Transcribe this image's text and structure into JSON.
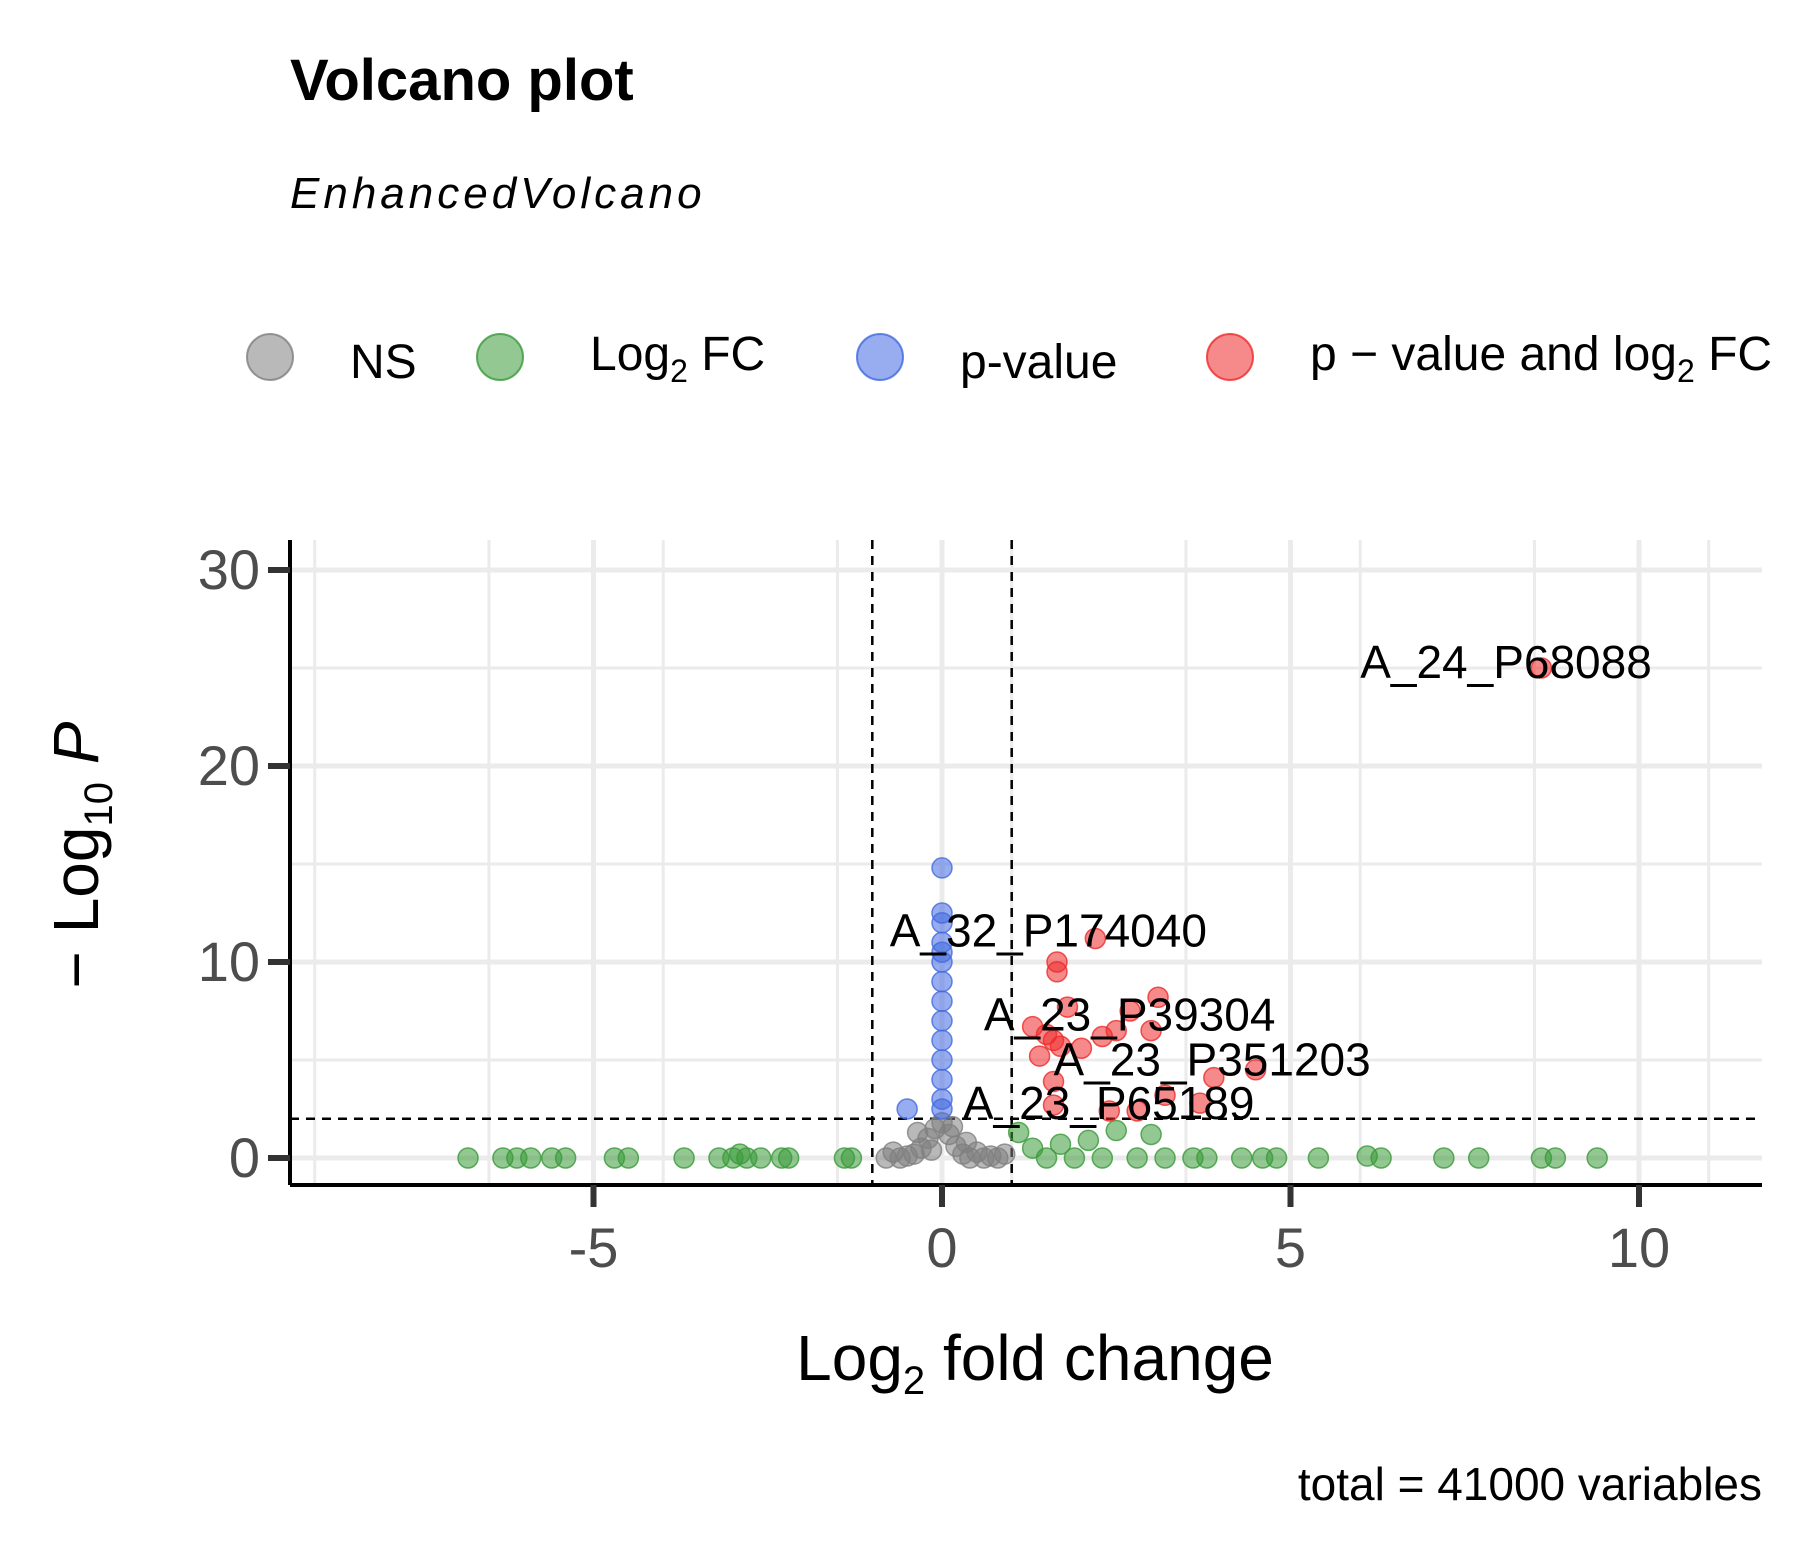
{
  "chart_data": {
    "type": "scatter",
    "title": "Volcano plot",
    "subtitle": "EnhancedVolcano",
    "xlabel": "Log2 fold change",
    "ylabel": "-Log10 P",
    "caption": "total = 41000 variables",
    "xlim": [
      -9,
      12
    ],
    "ylim": [
      -1.5,
      31.5
    ],
    "x_ticks": [
      -5,
      0,
      5,
      10
    ],
    "y_ticks": [
      0,
      10,
      20,
      30
    ],
    "grid": true,
    "legend_position": "top",
    "thresholds": {
      "fc_cutoff": 1,
      "p_cutoff_neglog10": 2
    },
    "colors": {
      "NS": "#808080",
      "FC": "#3a9a3a",
      "P": "#4169e1",
      "FC_P": "#ee2a2a"
    },
    "series": [
      {
        "name": "NS",
        "color": "#808080",
        "label_prefix": "",
        "label_main": "NS",
        "label_sub": "",
        "label_suffix": "",
        "points": [
          [
            -0.8,
            0
          ],
          [
            -0.6,
            0
          ],
          [
            -0.5,
            0.1
          ],
          [
            -0.4,
            0.2
          ],
          [
            -0.3,
            0.5
          ],
          [
            -0.2,
            1.0
          ],
          [
            -0.1,
            1.5
          ],
          [
            0,
            1.8
          ],
          [
            0.1,
            1.2
          ],
          [
            0.2,
            0.6
          ],
          [
            0.3,
            0.2
          ],
          [
            0.4,
            0
          ],
          [
            0.5,
            0.3
          ],
          [
            0.6,
            0
          ],
          [
            0.7,
            0.1
          ],
          [
            0.8,
            0
          ],
          [
            0.9,
            0.2
          ],
          [
            -0.7,
            0.3
          ],
          [
            -0.35,
            1.3
          ],
          [
            0.15,
            1.6
          ],
          [
            0.35,
            0.8
          ],
          [
            -0.15,
            0.4
          ]
        ]
      },
      {
        "name": "Log2 FC",
        "color": "#3a9a3a",
        "label_prefix": "",
        "label_main": "Log",
        "label_sub": "2",
        "label_suffix": " FC",
        "points": [
          [
            -6.8,
            0
          ],
          [
            -6.3,
            0
          ],
          [
            -6.1,
            0
          ],
          [
            -5.9,
            0
          ],
          [
            -5.6,
            0
          ],
          [
            -5.4,
            0
          ],
          [
            -4.7,
            0
          ],
          [
            -4.5,
            0
          ],
          [
            -3.7,
            0
          ],
          [
            -3.2,
            0
          ],
          [
            -3.0,
            0
          ],
          [
            -2.9,
            0.2
          ],
          [
            -2.8,
            0
          ],
          [
            -2.6,
            0
          ],
          [
            -2.3,
            0
          ],
          [
            -2.2,
            0
          ],
          [
            -1.4,
            0
          ],
          [
            -1.3,
            0
          ],
          [
            1.1,
            1.3
          ],
          [
            1.3,
            0.5
          ],
          [
            1.5,
            0
          ],
          [
            1.7,
            0.7
          ],
          [
            1.9,
            0
          ],
          [
            2.1,
            0.9
          ],
          [
            2.3,
            0
          ],
          [
            2.5,
            1.4
          ],
          [
            2.8,
            0
          ],
          [
            3.0,
            1.2
          ],
          [
            3.2,
            0
          ],
          [
            3.6,
            0
          ],
          [
            3.8,
            0
          ],
          [
            4.3,
            0
          ],
          [
            4.6,
            0
          ],
          [
            4.8,
            0
          ],
          [
            5.4,
            0
          ],
          [
            6.1,
            0.1
          ],
          [
            6.3,
            0
          ],
          [
            7.2,
            0
          ],
          [
            7.7,
            0
          ],
          [
            8.6,
            0
          ],
          [
            8.8,
            0
          ],
          [
            9.4,
            0
          ]
        ]
      },
      {
        "name": "p-value",
        "color": "#4169e1",
        "label_prefix": "",
        "label_main": "p-value",
        "label_sub": "",
        "label_suffix": "",
        "points": [
          [
            -0.5,
            2.5
          ],
          [
            0,
            2.5
          ],
          [
            0,
            3
          ],
          [
            0,
            4
          ],
          [
            0,
            5
          ],
          [
            0,
            6
          ],
          [
            0,
            7
          ],
          [
            0,
            8
          ],
          [
            0,
            9
          ],
          [
            0,
            10
          ],
          [
            0,
            10.5
          ],
          [
            0,
            11
          ],
          [
            0,
            12
          ],
          [
            0,
            12.5
          ],
          [
            0,
            14.8
          ]
        ]
      },
      {
        "name": "p - value and log2 FC",
        "color": "#ee2a2a",
        "label_prefix": "p − value and ",
        "label_main": "log",
        "label_sub": "2",
        "label_suffix": " FC",
        "points": [
          [
            8.6,
            25
          ],
          [
            2.2,
            11.2
          ],
          [
            1.65,
            10
          ],
          [
            1.65,
            9.5
          ],
          [
            3.1,
            8.2
          ],
          [
            1.8,
            7.7
          ],
          [
            2.7,
            7.5
          ],
          [
            3.0,
            6.5
          ],
          [
            2.5,
            6.5
          ],
          [
            2.3,
            6.2
          ],
          [
            1.3,
            6.7
          ],
          [
            1.5,
            6.3
          ],
          [
            1.6,
            6.0
          ],
          [
            1.7,
            5.7
          ],
          [
            2.0,
            5.6
          ],
          [
            1.4,
            5.2
          ],
          [
            4.5,
            4.5
          ],
          [
            3.9,
            4.1
          ],
          [
            1.6,
            3.9
          ],
          [
            3.2,
            3.2
          ],
          [
            1.6,
            2.7
          ],
          [
            2.4,
            2.4
          ],
          [
            3.7,
            2.8
          ],
          [
            2.8,
            2.4
          ]
        ]
      }
    ],
    "annotations": [
      {
        "text": "A_24_P68088",
        "x": 6.0,
        "y": 24.5
      },
      {
        "text": "A_32_P174040",
        "x": -0.75,
        "y": 10.8
      },
      {
        "text": "A_23_P39304",
        "x": 0.6,
        "y": 6.5
      },
      {
        "text": "A_23_P351203",
        "x": 1.6,
        "y": 4.2
      },
      {
        "text": "A_23_P65189",
        "x": 0.3,
        "y": 2.0
      }
    ]
  }
}
